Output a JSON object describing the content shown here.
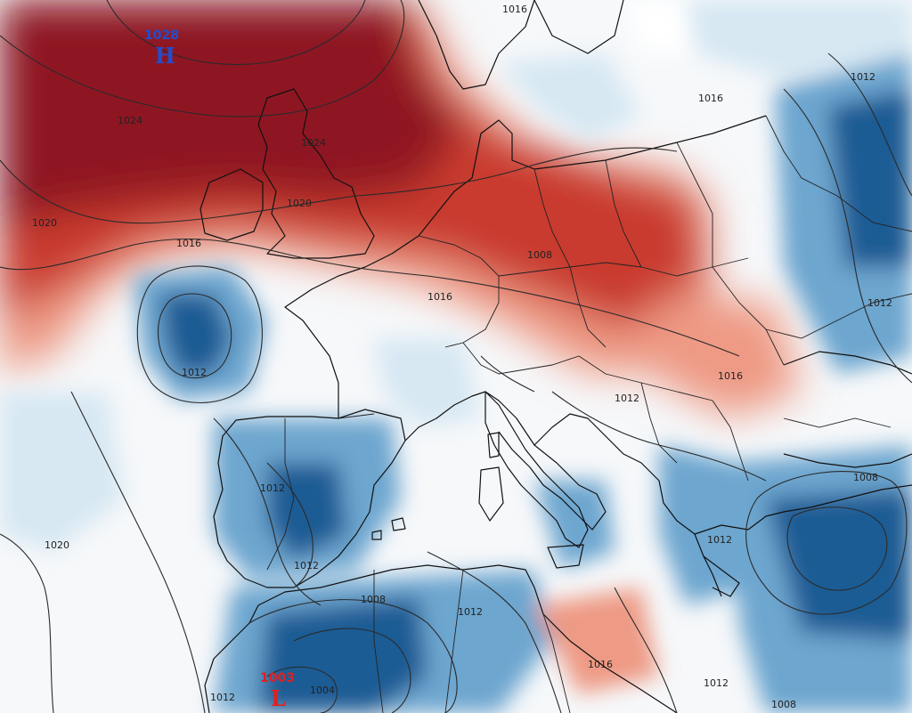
{
  "colors": {
    "high_center": "#1f4fd1",
    "low_center": "#e02020",
    "warm_strong": "#8e1422",
    "warm_mid": "#c93a2e",
    "warm_light": "#ee9a84",
    "neutral": "#ffffff",
    "cool_light": "#d7e8f3",
    "cool_mid": "#6da6cf",
    "cool_strong": "#1f5c94"
  },
  "pressure_centers": [
    {
      "id": "high",
      "type": "H",
      "value": "1028"
    },
    {
      "id": "low",
      "type": "L",
      "value": "1003"
    }
  ],
  "isobar_labels": [
    "1024",
    "1024",
    "1020",
    "1020",
    "1016",
    "1016",
    "1012",
    "1016",
    "1016",
    "1016",
    "1012",
    "1012",
    "1012",
    "1012",
    "1012",
    "1020",
    "1012",
    "1008",
    "1004",
    "1012",
    "1016",
    "1008",
    "1008",
    "1012",
    "1012",
    "1008"
  ]
}
